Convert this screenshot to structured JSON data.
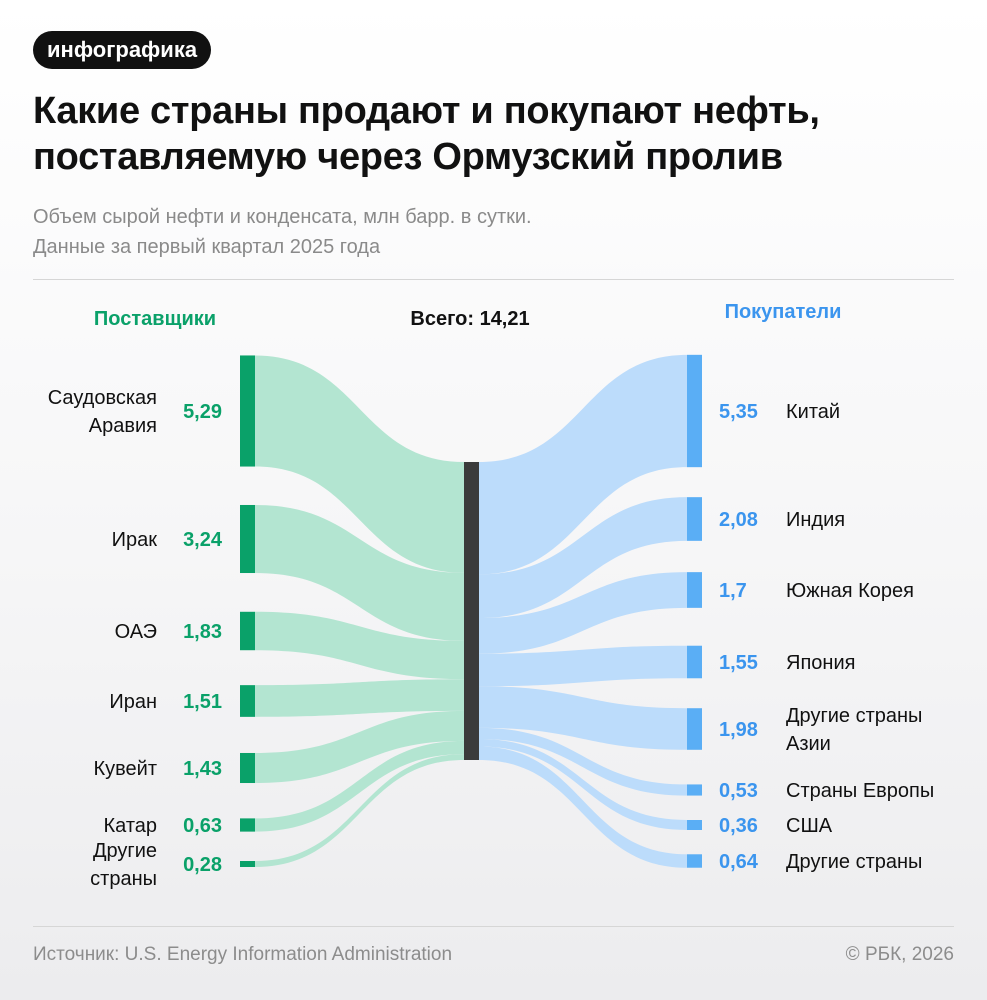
{
  "tag": "инфографика",
  "title_lines": [
    "Какие страны продают и покупают нефть,",
    "поставляемую через Ормузский пролив"
  ],
  "subtitle_lines": [
    "Объем сырой нефти и конденсата, млн барр. в сутки.",
    "Данные за первый квартал 2025 года"
  ],
  "footer": {
    "source": "Источник: U.S. Energy Information Administration",
    "copyright": "© РБК, 2026"
  },
  "colors": {
    "supplier_bar": "#0aa169",
    "supplier_flow": "#b3e5d1",
    "supplier_text": "#0aa169",
    "buyer_bar": "#5aaef5",
    "buyer_flow": "#bcdcfb",
    "buyer_text": "#3b95ee",
    "center_bar": "#3b3b3b"
  },
  "chart_data": {
    "type": "sankey",
    "total_label": "Всего: 14,21",
    "suppliers_header": "Поставщики",
    "buyers_header": "Покупатели",
    "suppliers": [
      {
        "name": [
          "Саудовская",
          "Аравия"
        ],
        "value": 5.29,
        "label": "5,29"
      },
      {
        "name": [
          "Ирак"
        ],
        "value": 3.24,
        "label": "3,24"
      },
      {
        "name": [
          "ОАЭ"
        ],
        "value": 1.83,
        "label": "1,83"
      },
      {
        "name": [
          "Иран"
        ],
        "value": 1.51,
        "label": "1,51"
      },
      {
        "name": [
          "Кувейт"
        ],
        "value": 1.43,
        "label": "1,43"
      },
      {
        "name": [
          "Катар"
        ],
        "value": 0.63,
        "label": "0,63"
      },
      {
        "name": [
          "Другие",
          "страны"
        ],
        "value": 0.28,
        "label": "0,28"
      }
    ],
    "buyers": [
      {
        "name": [
          "Китай"
        ],
        "value": 5.35,
        "label": "5,35"
      },
      {
        "name": [
          "Индия"
        ],
        "value": 2.08,
        "label": "2,08"
      },
      {
        "name": [
          "Южная Корея"
        ],
        "value": 1.7,
        "label": "1,7"
      },
      {
        "name": [
          "Япония"
        ],
        "value": 1.55,
        "label": "1,55"
      },
      {
        "name": [
          "Другие страны",
          "Азии"
        ],
        "value": 1.98,
        "label": "1,98"
      },
      {
        "name": [
          "Страны Европы"
        ],
        "value": 0.53,
        "label": "0,53"
      },
      {
        "name": [
          "США"
        ],
        "value": 0.36,
        "label": "0,36"
      },
      {
        "name": [
          "Другие страны"
        ],
        "value": 0.64,
        "label": "0,64"
      }
    ]
  }
}
